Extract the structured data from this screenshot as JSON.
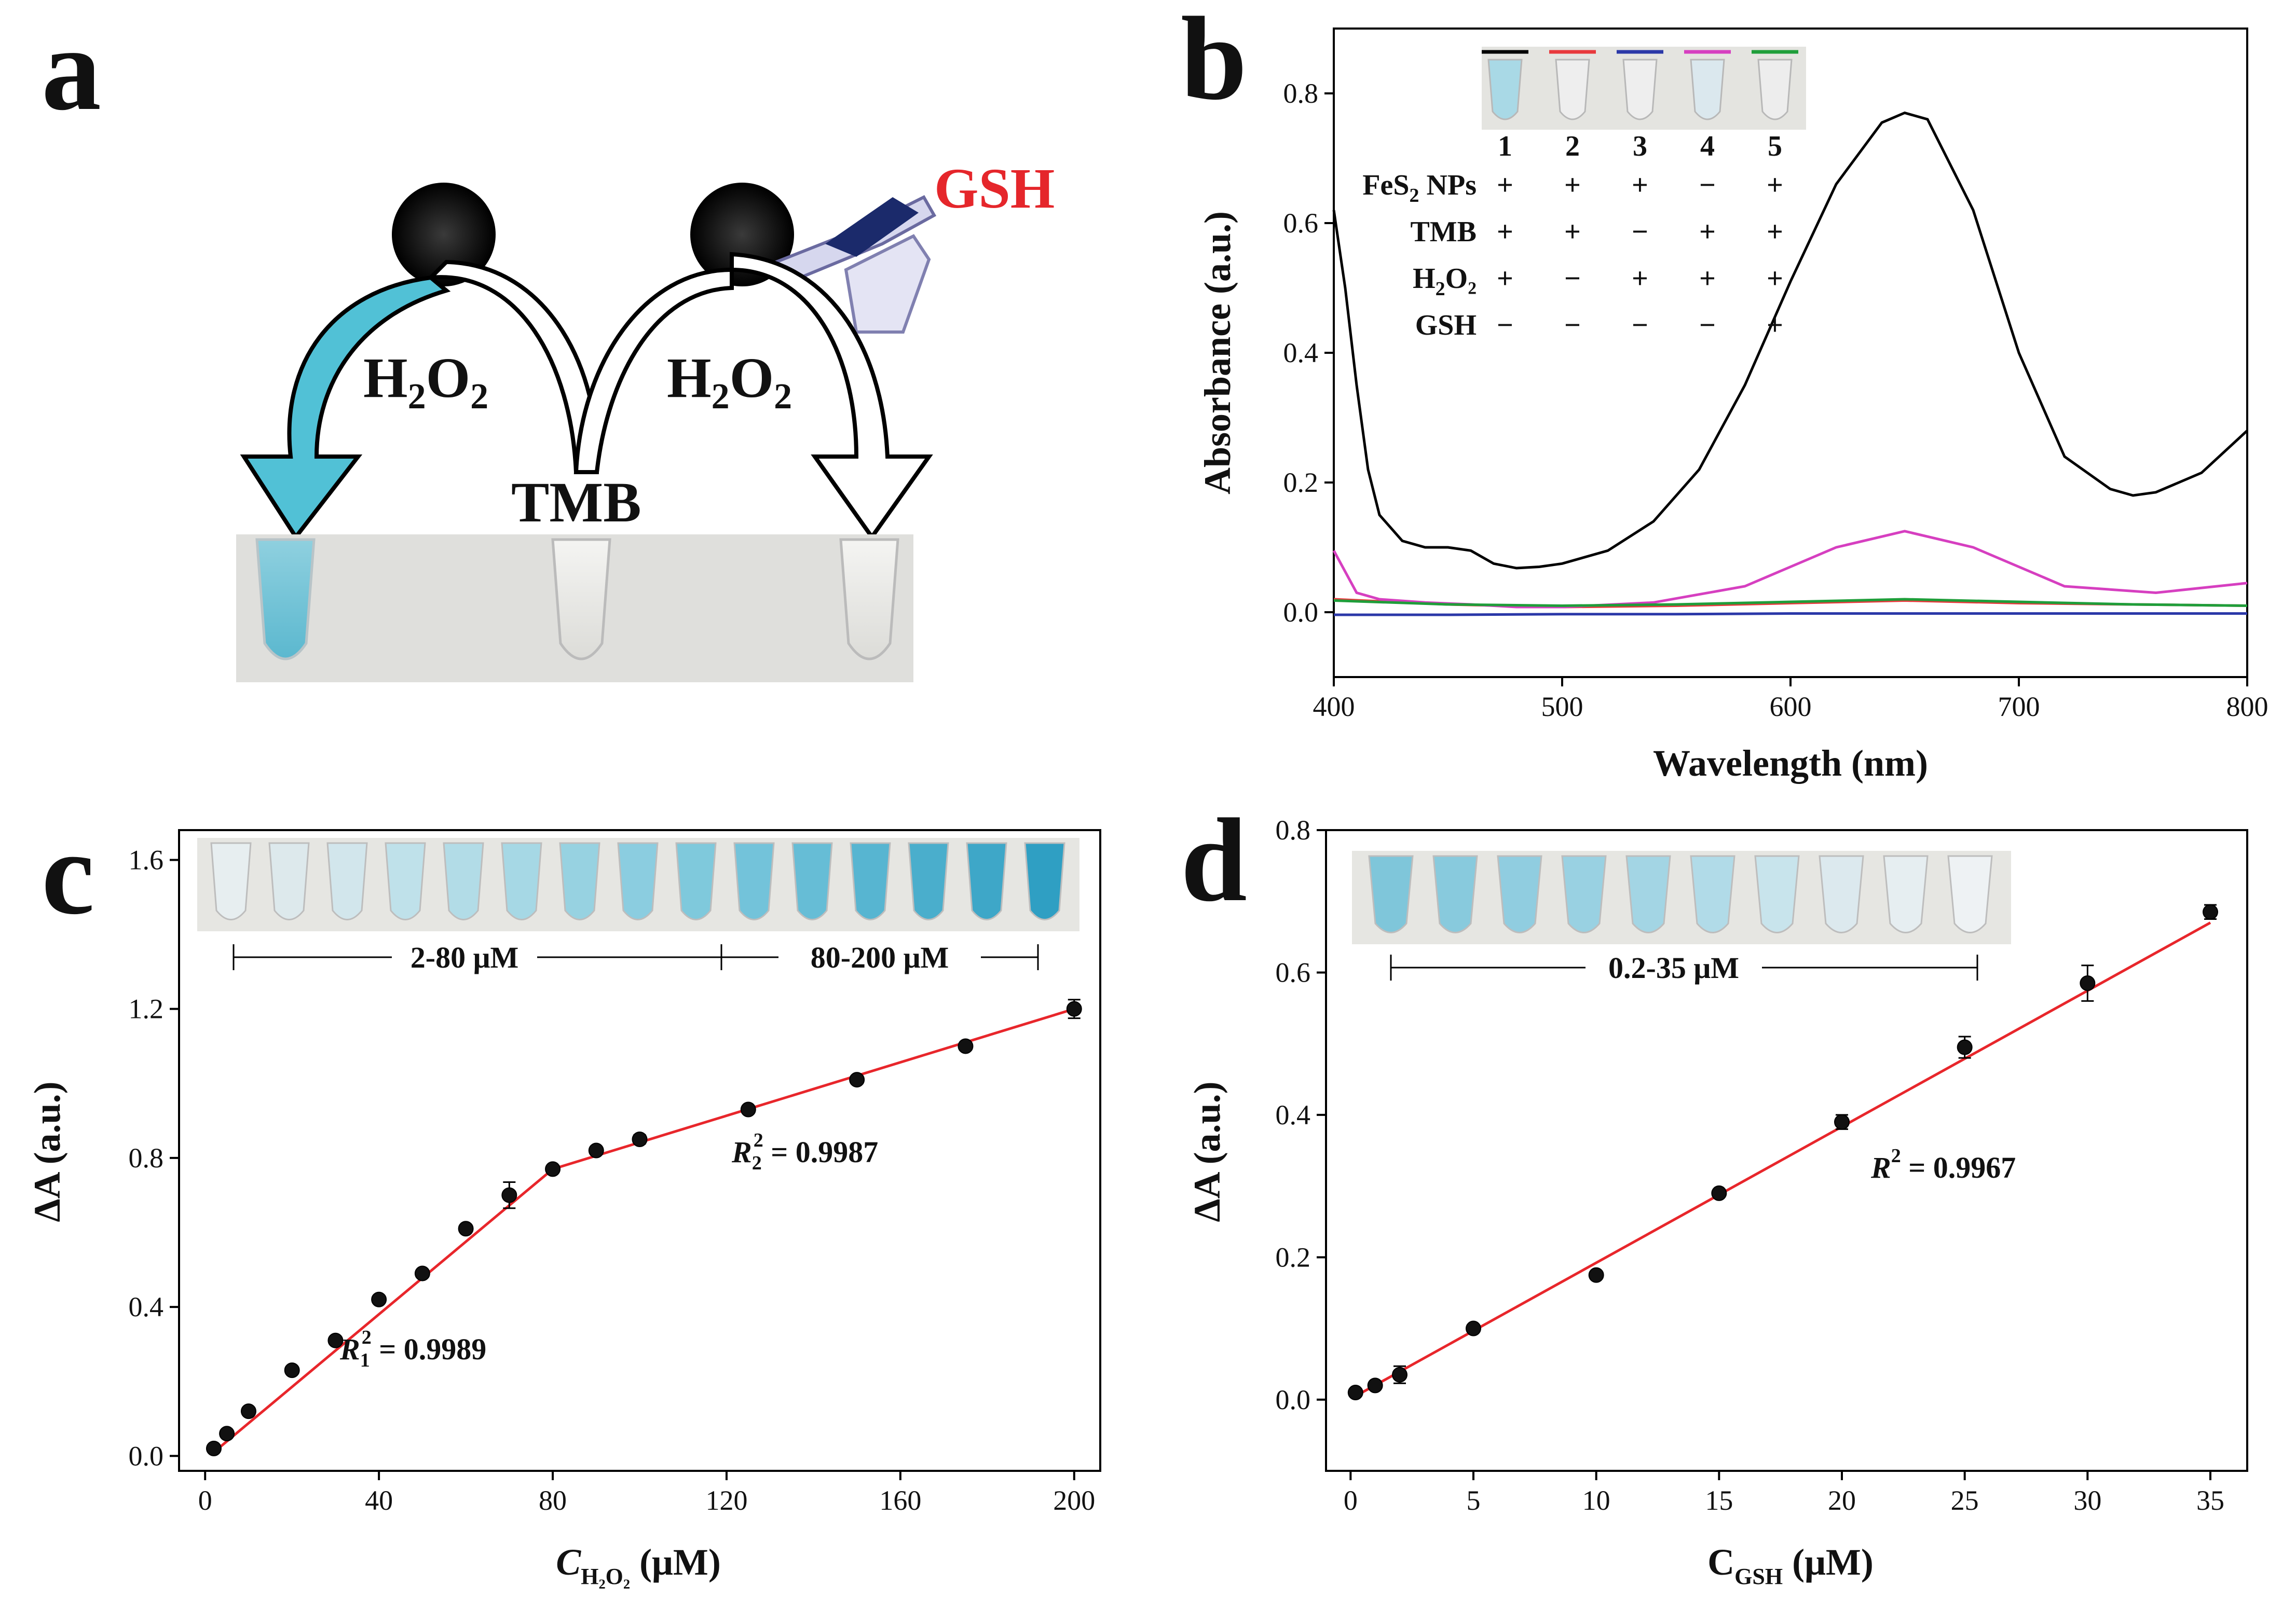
{
  "panels": {
    "a": {
      "letter": "a",
      "gsh_label": "GSH",
      "h2o2_left": {
        "main": "H",
        "sub": "2",
        "mid": "O",
        "sub2": "2"
      },
      "h2o2_right": {
        "main": "H",
        "sub": "2",
        "mid": "O",
        "sub2": "2"
      },
      "tmb_label": "TMB"
    },
    "b": {
      "letter": "b"
    },
    "c": {
      "letter": "c"
    },
    "d": {
      "letter": "d"
    }
  },
  "chart_data": [
    {
      "panel": "b",
      "type": "line",
      "xlabel": "Wavelength (nm)",
      "ylabel": "Absorbance (a.u.)",
      "xlim": [
        400,
        800
      ],
      "ylim": [
        -0.1,
        0.9
      ],
      "xticks": [
        400,
        500,
        600,
        700,
        800
      ],
      "yticks": [
        0.0,
        0.2,
        0.4,
        0.6,
        0.8
      ],
      "ytick_labels": [
        "0.0",
        "0.2",
        "0.4",
        "0.6",
        "0.8"
      ],
      "series": [
        {
          "name": "1",
          "color": "#000000",
          "x": [
            400,
            405,
            410,
            415,
            420,
            430,
            440,
            450,
            460,
            470,
            480,
            490,
            500,
            520,
            540,
            560,
            580,
            600,
            620,
            640,
            650,
            660,
            680,
            700,
            720,
            740,
            750,
            760,
            780,
            800
          ],
          "y": [
            0.62,
            0.5,
            0.35,
            0.22,
            0.15,
            0.11,
            0.1,
            0.1,
            0.095,
            0.075,
            0.068,
            0.07,
            0.075,
            0.095,
            0.14,
            0.22,
            0.35,
            0.51,
            0.66,
            0.755,
            0.77,
            0.76,
            0.62,
            0.4,
            0.24,
            0.19,
            0.18,
            0.185,
            0.215,
            0.28
          ]
        },
        {
          "name": "2",
          "color": "#e8393d",
          "x": [
            400,
            450,
            500,
            550,
            600,
            650,
            700,
            750,
            800
          ],
          "y": [
            0.02,
            0.012,
            0.008,
            0.01,
            0.014,
            0.018,
            0.014,
            0.012,
            0.01
          ]
        },
        {
          "name": "3",
          "color": "#2b38a8",
          "x": [
            400,
            450,
            500,
            550,
            600,
            650,
            700,
            750,
            800
          ],
          "y": [
            -0.004,
            -0.004,
            -0.003,
            -0.003,
            -0.002,
            -0.002,
            -0.002,
            -0.002,
            -0.002
          ]
        },
        {
          "name": "4",
          "color": "#d63fc0",
          "x": [
            400,
            410,
            420,
            440,
            460,
            480,
            500,
            540,
            580,
            620,
            650,
            680,
            720,
            760,
            800
          ],
          "y": [
            0.095,
            0.03,
            0.02,
            0.015,
            0.012,
            0.008,
            0.008,
            0.015,
            0.04,
            0.1,
            0.125,
            0.1,
            0.04,
            0.03,
            0.045
          ]
        },
        {
          "name": "5",
          "color": "#1f9e3a",
          "x": [
            400,
            450,
            500,
            550,
            600,
            650,
            700,
            750,
            800
          ],
          "y": [
            0.018,
            0.012,
            0.01,
            0.012,
            0.016,
            0.02,
            0.016,
            0.012,
            0.01
          ]
        }
      ],
      "legend": {
        "numbers": [
          "1",
          "2",
          "3",
          "4",
          "5"
        ],
        "tube_colors": [
          "#a9d9e6",
          "#eeeeee",
          "#eeeeee",
          "#dbe8ee",
          "#ededed"
        ],
        "rows": [
          {
            "label": "FeS",
            "sub": "2",
            "label_end": " NPs",
            "signs": [
              "+",
              "+",
              "+",
              "−",
              "+"
            ]
          },
          {
            "label": "TMB",
            "sub": "",
            "label_end": "",
            "signs": [
              "+",
              "+",
              "−",
              "+",
              "+"
            ]
          },
          {
            "label": "H",
            "sub": "2",
            "label_end": "O₂",
            "signs": [
              "+",
              "−",
              "+",
              "+",
              "+"
            ]
          },
          {
            "label": "GSH",
            "sub": "",
            "label_end": "",
            "signs": [
              "−",
              "−",
              "−",
              "−",
              "+"
            ]
          }
        ]
      }
    },
    {
      "panel": "c",
      "type": "scatter",
      "xlabel_main": "C",
      "xlabel_sub": "H₂O₂",
      "xlabel_unit": " (μM)",
      "ylabel": "ΔA (a.u.)",
      "xlim": [
        -6,
        206
      ],
      "ylim": [
        -0.04,
        1.68
      ],
      "xticks": [
        0,
        40,
        80,
        120,
        160,
        200
      ],
      "yticks": [
        0.0,
        0.4,
        0.8,
        1.2,
        1.6
      ],
      "ytick_labels": [
        "0.0",
        "0.4",
        "0.8",
        "1.2",
        "1.6"
      ],
      "points": {
        "x": [
          2,
          5,
          10,
          20,
          30,
          40,
          50,
          60,
          70,
          80,
          90,
          100,
          125,
          150,
          175,
          200
        ],
        "y": [
          0.02,
          0.06,
          0.12,
          0.23,
          0.31,
          0.42,
          0.49,
          0.61,
          0.7,
          0.77,
          0.82,
          0.85,
          0.93,
          1.01,
          1.1,
          1.2
        ],
        "err": [
          0.01,
          0.01,
          0.01,
          0.01,
          0.01,
          0.01,
          0.01,
          0.01,
          0.035,
          0.01,
          0.01,
          0.012,
          0.01,
          0.01,
          0.01,
          0.025
        ]
      },
      "fit_lines": [
        {
          "x": [
            2,
            80
          ],
          "y": [
            0.01,
            0.77
          ]
        },
        {
          "x": [
            80,
            200
          ],
          "y": [
            0.77,
            1.2
          ]
        }
      ],
      "annotations": {
        "r1": {
          "R": "R",
          "sub": "1",
          "sup": "2",
          "value": " = 0.9989"
        },
        "r2": {
          "R": "R",
          "sub": "2",
          "sup": "2",
          "value": " = 0.9987"
        }
      },
      "ranges": [
        "2-80 μM",
        "80-200 μM"
      ],
      "tube_colors": [
        "#e7eef0",
        "#dde9ec",
        "#d2e6ec",
        "#bfe1ea",
        "#b2dce7",
        "#a6d8e5",
        "#97d2e1",
        "#8bcde0",
        "#7fc9dc",
        "#73c3da",
        "#66bdd6",
        "#57b5d1",
        "#4aaecc",
        "#3ea7c8",
        "#2f9fc3"
      ]
    },
    {
      "panel": "d",
      "type": "scatter",
      "xlabel_main": "C",
      "xlabel_sub": "GSH",
      "xlabel_unit": " (μM)",
      "ylabel": "ΔA (a.u.)",
      "xlim": [
        -1,
        36.5
      ],
      "ylim": [
        -0.1,
        0.8
      ],
      "xticks": [
        0,
        5,
        10,
        15,
        20,
        25,
        30,
        35
      ],
      "yticks": [
        0.0,
        0.2,
        0.4,
        0.6,
        0.8
      ],
      "ytick_labels": [
        "0.0",
        "0.2",
        "0.4",
        "0.6",
        "0.8"
      ],
      "points": {
        "x": [
          0.2,
          1,
          2,
          5,
          10,
          15,
          20,
          25,
          30,
          35
        ],
        "y": [
          0.01,
          0.02,
          0.035,
          0.1,
          0.175,
          0.29,
          0.39,
          0.495,
          0.585,
          0.685
        ],
        "err": [
          0.005,
          0.005,
          0.012,
          0.005,
          0.005,
          0.005,
          0.01,
          0.015,
          0.025,
          0.01
        ]
      },
      "fit_lines": [
        {
          "x": [
            0.2,
            35
          ],
          "y": [
            0.005,
            0.67
          ]
        }
      ],
      "annotations": {
        "r": {
          "R": "R",
          "sup": "2",
          "value": " = 0.9967"
        }
      },
      "ranges": [
        "0.2-35 μM"
      ],
      "tube_colors": [
        "#7fc6da",
        "#88cadd",
        "#90cde0",
        "#99d1e2",
        "#a3d5e4",
        "#b1dbe8",
        "#c8e4ec",
        "#dce9ee",
        "#e6eef1",
        "#eef2f4"
      ]
    }
  ]
}
